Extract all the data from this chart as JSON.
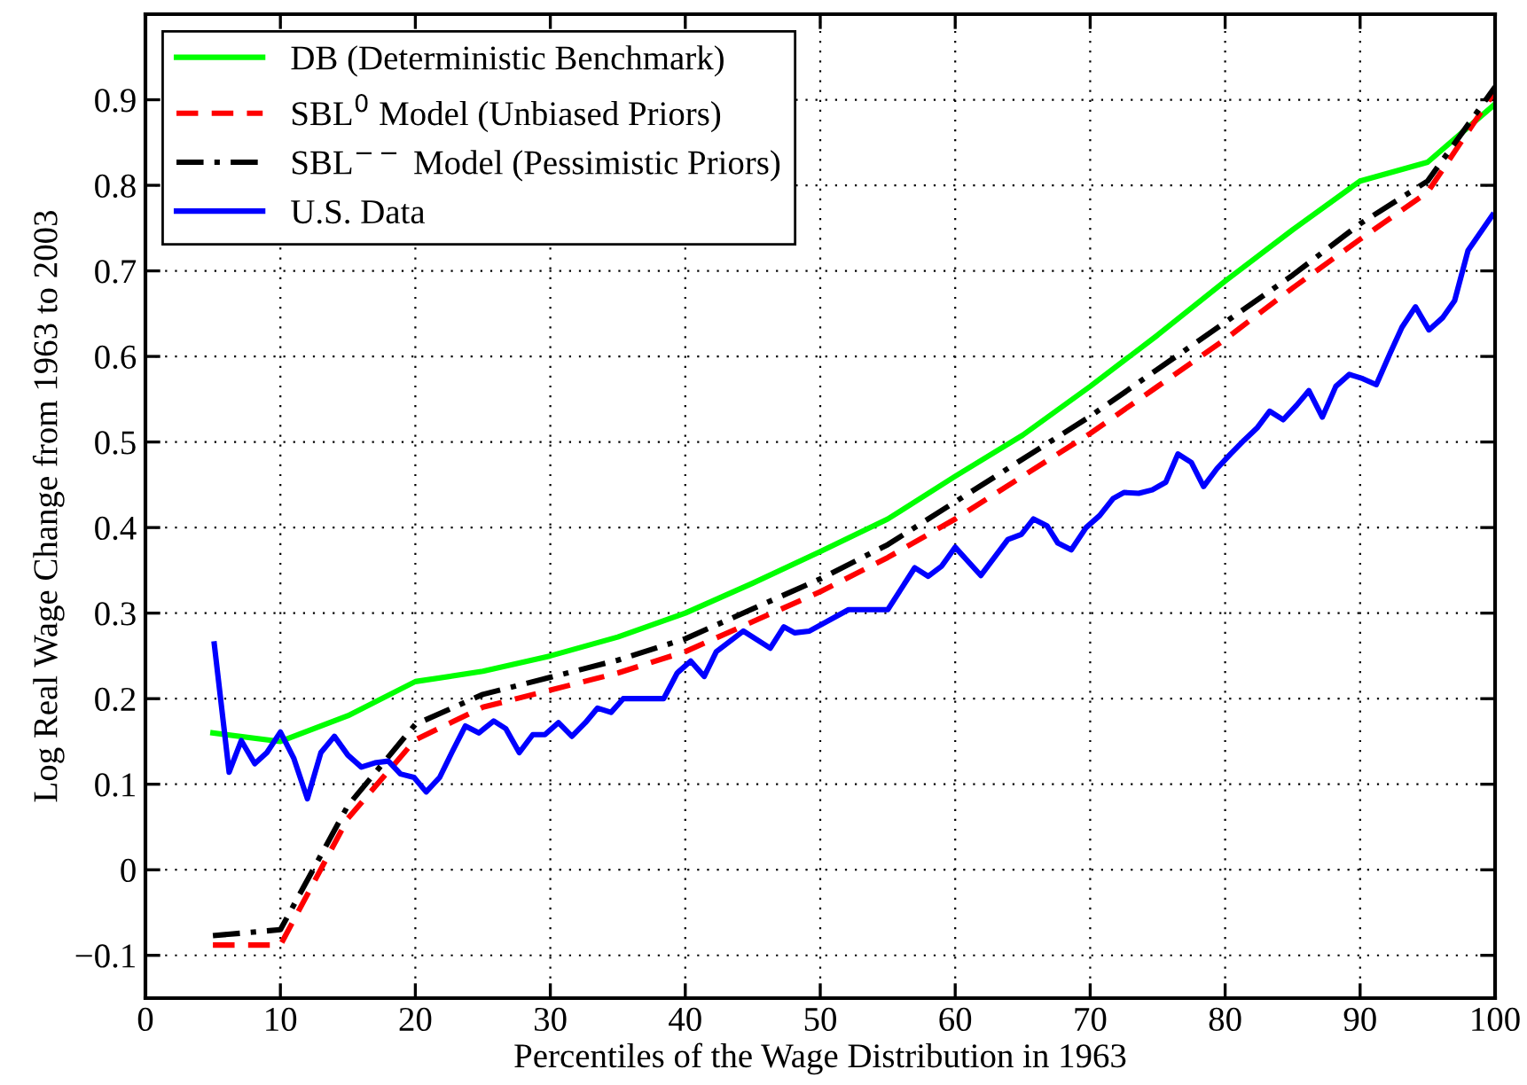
{
  "chart_data": {
    "type": "line",
    "xlabel": "Percentiles of the Wage Distribution in 1963",
    "ylabel": "Log Real Wage Change from 1963 to 2003",
    "xlim": [
      0,
      100
    ],
    "xticks": [
      0,
      10,
      20,
      30,
      40,
      50,
      60,
      70,
      80,
      90,
      100
    ],
    "ylim": [
      -0.15,
      1.0
    ],
    "yticks": [
      -0.1,
      0,
      0.1,
      0.2,
      0.3,
      0.4,
      0.5,
      0.6,
      0.7,
      0.8,
      0.9
    ],
    "grid": true,
    "legend": "top left",
    "marker": "none",
    "series": [
      {
        "name": "DB (Deterministic Benchmark)",
        "color": "#00ff00",
        "line_style": "solid",
        "x": [
          5,
          10,
          15,
          20,
          25,
          30,
          35,
          40,
          45,
          50,
          55,
          60,
          65,
          70,
          75,
          80,
          85,
          90,
          95,
          100
        ],
        "values": [
          0.16,
          0.15,
          0.18,
          0.22,
          0.232,
          0.25,
          0.272,
          0.3,
          0.335,
          0.372,
          0.41,
          0.46,
          0.508,
          0.565,
          0.625,
          0.688,
          0.748,
          0.805,
          0.827,
          0.895
        ]
      },
      {
        "name": "SBL$^{0}$ Model (Unbiased Priors)",
        "color": "#ff0000",
        "line_style": "dashed",
        "x": [
          5,
          10,
          15,
          20,
          25,
          30,
          35,
          40,
          45,
          50,
          55,
          60,
          65,
          70,
          75,
          80,
          85,
          90,
          95,
          100
        ],
        "values": [
          -0.088,
          -0.088,
          0.06,
          0.152,
          0.19,
          0.21,
          0.23,
          0.255,
          0.29,
          0.325,
          0.365,
          0.41,
          0.46,
          0.51,
          0.565,
          0.62,
          0.68,
          0.737,
          0.792,
          0.91
        ]
      },
      {
        "name": "SBL$^{−−}$ Model (Pessimistic Priors)",
        "color": "#000000",
        "line_style": "dashdot",
        "x": [
          5,
          10,
          15,
          20,
          25,
          30,
          35,
          40,
          45,
          50,
          55,
          60,
          65,
          70,
          75,
          80,
          85,
          90,
          95,
          100
        ],
        "values": [
          -0.077,
          -0.07,
          0.075,
          0.17,
          0.205,
          0.225,
          0.245,
          0.27,
          0.305,
          0.34,
          0.38,
          0.43,
          0.48,
          0.53,
          0.585,
          0.64,
          0.695,
          0.755,
          0.805,
          0.915
        ]
      },
      {
        "name": "U.S. Data",
        "color": "#0000ff",
        "line_style": "solid",
        "x": [
          5.1,
          6.2,
          7.1,
          8.1,
          9,
          10,
          11,
          12,
          13,
          14,
          15,
          16,
          17,
          18,
          18.9,
          19.9,
          20.8,
          21.8,
          22.7,
          23.7,
          24.7,
          25.8,
          26.7,
          27.7,
          28.7,
          29.6,
          30.6,
          31.6,
          32.6,
          33.5,
          34.5,
          35.4,
          38.4,
          39.4,
          40.4,
          41.4,
          42.3,
          44.3,
          46.3,
          47.3,
          48.1,
          49.2,
          52.1,
          55,
          57,
          58,
          59,
          60,
          61.9,
          63.9,
          64.9,
          65.8,
          66.8,
          67.6,
          68.6,
          69.7,
          70.7,
          71.7,
          72.5,
          73.6,
          74.6,
          75.6,
          76.5,
          77.5,
          78.4,
          79.4,
          80.4,
          81.4,
          82.4,
          83.3,
          84.3,
          85.3,
          86.2,
          87.2,
          88.2,
          89.2,
          90.2,
          91.2,
          92.2,
          93.1,
          94.1,
          95.1,
          96.1,
          97,
          98,
          99.8
        ],
        "values": [
          0.264,
          0.114,
          0.151,
          0.124,
          0.137,
          0.161,
          0.13,
          0.083,
          0.137,
          0.156,
          0.134,
          0.12,
          0.125,
          0.127,
          0.112,
          0.108,
          0.091,
          0.108,
          0.137,
          0.168,
          0.16,
          0.174,
          0.165,
          0.137,
          0.158,
          0.158,
          0.172,
          0.156,
          0.172,
          0.189,
          0.184,
          0.2,
          0.2,
          0.23,
          0.244,
          0.226,
          0.255,
          0.279,
          0.259,
          0.284,
          0.277,
          0.279,
          0.304,
          0.304,
          0.353,
          0.343,
          0.355,
          0.377,
          0.344,
          0.386,
          0.392,
          0.41,
          0.402,
          0.382,
          0.374,
          0.4,
          0.414,
          0.434,
          0.441,
          0.44,
          0.444,
          0.453,
          0.486,
          0.476,
          0.448,
          0.469,
          0.486,
          0.502,
          0.517,
          0.536,
          0.526,
          0.543,
          0.56,
          0.529,
          0.565,
          0.579,
          0.574,
          0.567,
          0.603,
          0.634,
          0.658,
          0.631,
          0.645,
          0.665,
          0.724,
          0.765
        ]
      }
    ]
  }
}
